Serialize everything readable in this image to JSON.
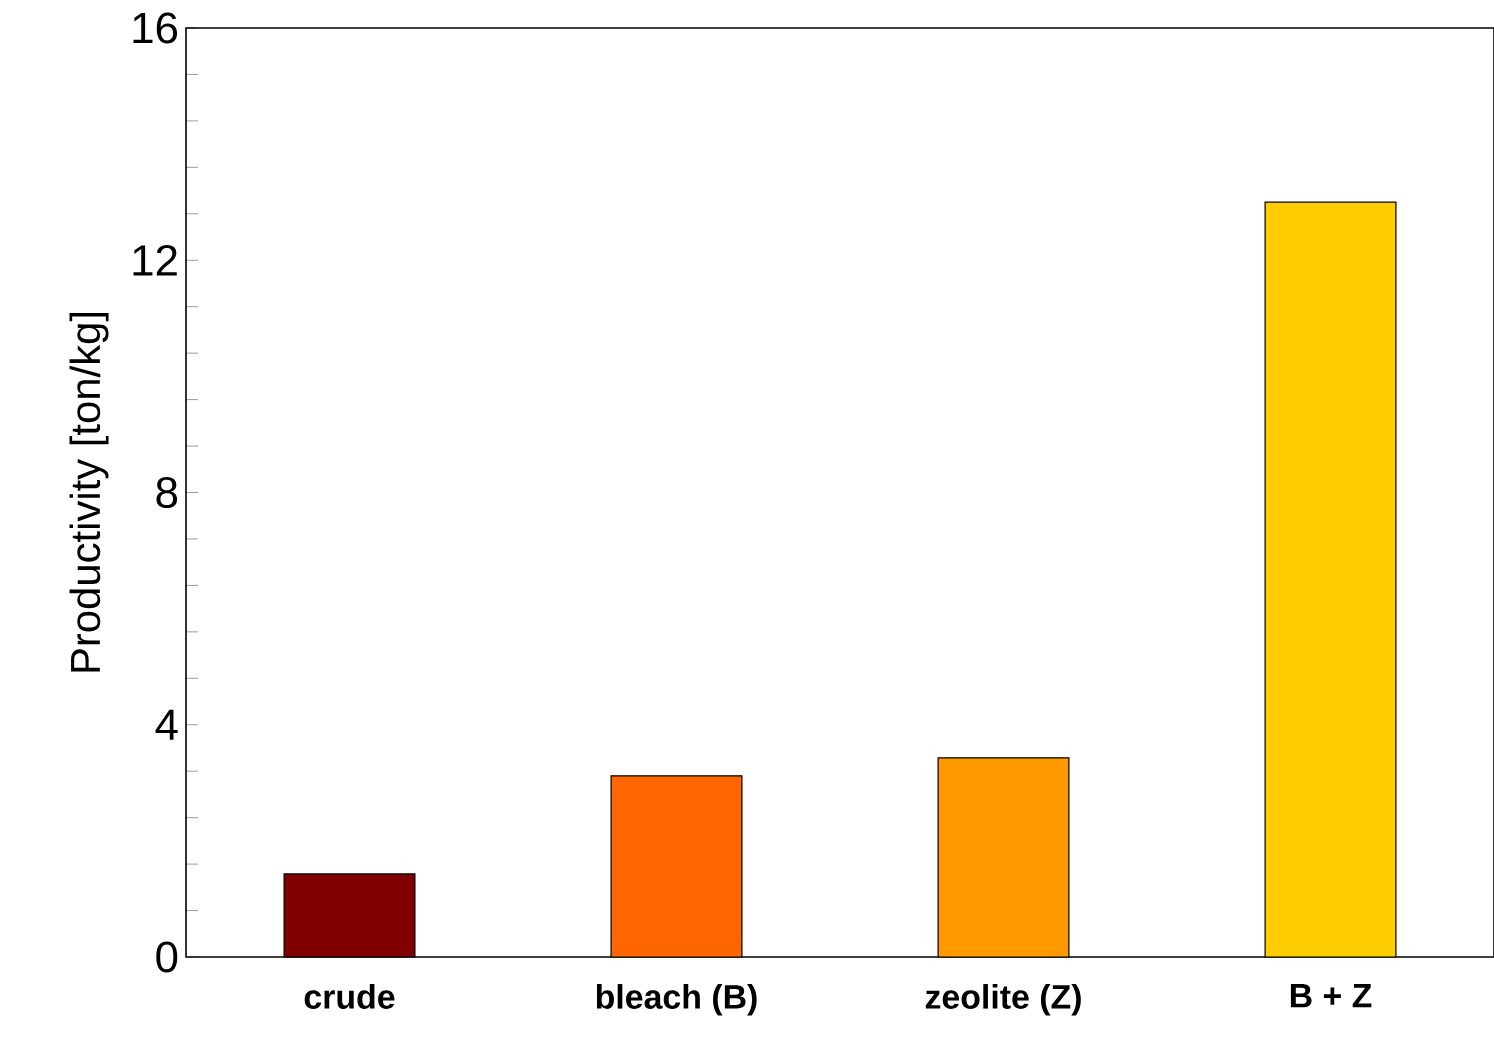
{
  "chart_data": {
    "type": "bar",
    "ylabel": "Productivity [ton/kg]",
    "categories": [
      "crude",
      "bleach (B)",
      "zeolite (Z)",
      "B + Z"
    ],
    "values": [
      1.43,
      3.12,
      3.43,
      13.0
    ],
    "colors": [
      "#800000",
      "#ff6600",
      "#ff9900",
      "#ffcc00"
    ],
    "ylim": [
      0,
      16
    ],
    "yticks": [
      0,
      {
        "value": 0.8,
        "label": null
      },
      {
        "value": 1.6,
        "label": null
      },
      {
        "value": 2.4,
        "label": null
      },
      {
        "value": 3.2,
        "label": null
      },
      4,
      {
        "value": 4.8,
        "label": null
      },
      {
        "value": 5.6,
        "label": null
      },
      {
        "value": 6.4,
        "label": null
      },
      {
        "value": 7.2,
        "label": null
      },
      8,
      {
        "value": 8.8,
        "label": null
      },
      {
        "value": 9.6,
        "label": null
      },
      {
        "value": 10.4,
        "label": null
      },
      {
        "value": 11.2,
        "label": null
      },
      12,
      {
        "value": 12.8,
        "label": null
      },
      {
        "value": 13.6,
        "label": null
      },
      {
        "value": 14.4,
        "label": null
      },
      {
        "value": 15.2,
        "label": null
      },
      16
    ],
    "grid": false
  }
}
